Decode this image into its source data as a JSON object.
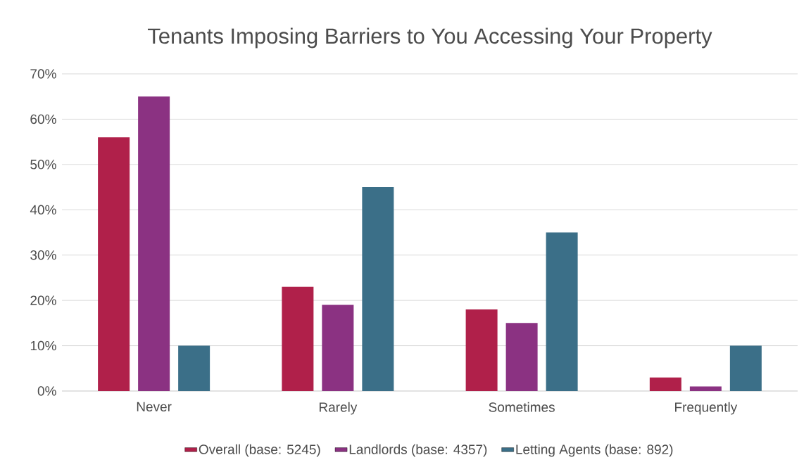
{
  "chart_data": {
    "type": "bar",
    "title": "Tenants Imposing Barriers to You Accessing Your Property",
    "categories": [
      "Never",
      "Rarely",
      "Sometimes",
      "Frequently"
    ],
    "series": [
      {
        "name": "Overall (base: 5245)",
        "color": "#b0204a",
        "values": [
          56,
          23,
          18,
          3
        ]
      },
      {
        "name": "Landlords (base: 4357)",
        "color": "#8b3282",
        "values": [
          65,
          19,
          15,
          1
        ]
      },
      {
        "name": "Letting Agents (base: 892)",
        "color": "#3b6f88",
        "values": [
          10,
          45,
          35,
          10
        ]
      }
    ],
    "ylim": [
      0,
      70
    ],
    "yticks": [
      {
        "value": 0,
        "label": "0%"
      },
      {
        "value": 10,
        "label": "10%"
      },
      {
        "value": 20,
        "label": "20%"
      },
      {
        "value": 30,
        "label": "30%"
      },
      {
        "value": 40,
        "label": "40%"
      },
      {
        "value": 50,
        "label": "50%"
      },
      {
        "value": 60,
        "label": "60%"
      },
      {
        "value": 70,
        "label": "70%"
      }
    ],
    "grid": "y",
    "legend": "bottom"
  }
}
